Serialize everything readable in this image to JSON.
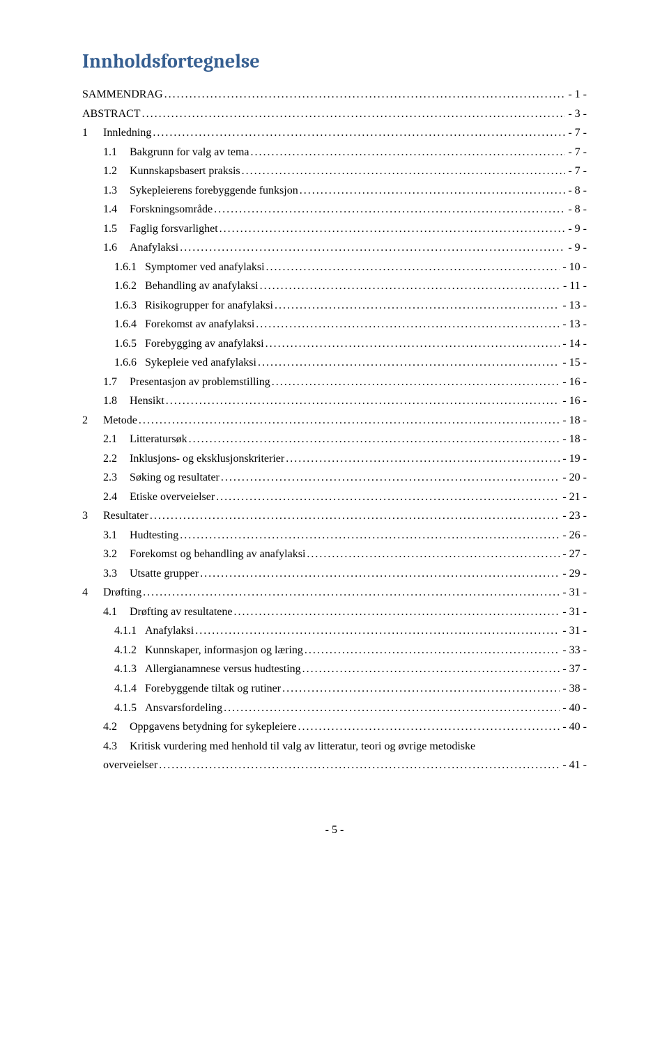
{
  "title": "Innholdsfortegnelse",
  "title_color": "#365f91",
  "background_color": "#ffffff",
  "text_color": "#000000",
  "body_font": "Times New Roman",
  "title_font": "Cambria",
  "title_fontsize_pt": 21,
  "body_fontsize_pt": 12,
  "footer_page": "- 5 -",
  "entries": [
    {
      "indent": 0,
      "num": "",
      "label": "SAMMENDRAG",
      "page": "- 1 -"
    },
    {
      "indent": 0,
      "num": "",
      "label": "ABSTRACT",
      "page": "- 3 -"
    },
    {
      "indent": 0,
      "num": "1",
      "label": "Innledning",
      "page": "- 7 -"
    },
    {
      "indent": 1,
      "num": "1.1",
      "label": "Bakgrunn for valg av tema",
      "page": "- 7 -"
    },
    {
      "indent": 1,
      "num": "1.2",
      "label": "Kunnskapsbasert praksis",
      "page": "- 7 -"
    },
    {
      "indent": 1,
      "num": "1.3",
      "label": "Sykepleierens forebyggende funksjon",
      "page": "- 8 -"
    },
    {
      "indent": 1,
      "num": "1.4",
      "label": "Forskningsområde",
      "page": "- 8 -"
    },
    {
      "indent": 1,
      "num": "1.5",
      "label": "Faglig forsvarlighet",
      "page": "- 9 -"
    },
    {
      "indent": 1,
      "num": "1.6",
      "label": "Anafylaksi",
      "page": "- 9 -"
    },
    {
      "indent": 2,
      "num": "1.6.1",
      "label": "Symptomer ved anafylaksi",
      "page": "- 10 -"
    },
    {
      "indent": 2,
      "num": "1.6.2",
      "label": "Behandling av anafylaksi",
      "page": "- 11 -"
    },
    {
      "indent": 2,
      "num": "1.6.3",
      "label": "Risikogrupper for anafylaksi",
      "page": "- 13 -"
    },
    {
      "indent": 2,
      "num": "1.6.4",
      "label": "Forekomst av anafylaksi",
      "page": "- 13 -"
    },
    {
      "indent": 2,
      "num": "1.6.5",
      "label": "Forebygging av anafylaksi",
      "page": "- 14 -"
    },
    {
      "indent": 2,
      "num": "1.6.6",
      "label": "Sykepleie ved anafylaksi",
      "page": "- 15 -"
    },
    {
      "indent": 1,
      "num": "1.7",
      "label": "Presentasjon av problemstilling",
      "page": "- 16 -"
    },
    {
      "indent": 1,
      "num": "1.8",
      "label": "Hensikt",
      "page": "- 16 -"
    },
    {
      "indent": 0,
      "num": "2",
      "label": "Metode",
      "page": "- 18 -"
    },
    {
      "indent": 1,
      "num": "2.1",
      "label": "Litteratursøk",
      "page": "- 18 -"
    },
    {
      "indent": 1,
      "num": "2.2",
      "label": "Inklusjons- og eksklusjonskriterier",
      "page": "- 19 -"
    },
    {
      "indent": 1,
      "num": "2.3",
      "label": "Søking og resultater",
      "page": "- 20 -"
    },
    {
      "indent": 1,
      "num": "2.4",
      "label": "Etiske overveielser",
      "page": "- 21 -"
    },
    {
      "indent": 0,
      "num": "3",
      "label": "Resultater",
      "page": "- 23 -"
    },
    {
      "indent": 1,
      "num": "3.1",
      "label": "Hudtesting",
      "page": "- 26 -"
    },
    {
      "indent": 1,
      "num": "3.2",
      "label": "Forekomst og behandling av anafylaksi",
      "page": "- 27 -"
    },
    {
      "indent": 1,
      "num": "3.3",
      "label": "Utsatte grupper",
      "page": "- 29 -"
    },
    {
      "indent": 0,
      "num": "4",
      "label": "Drøfting",
      "page": "- 31 -"
    },
    {
      "indent": 1,
      "num": "4.1",
      "label": "Drøfting av resultatene",
      "page": "- 31 -"
    },
    {
      "indent": 2,
      "num": "4.1.1",
      "label": "Anafylaksi",
      "page": "- 31 -"
    },
    {
      "indent": 2,
      "num": "4.1.2",
      "label": "Kunnskaper, informasjon og læring",
      "page": "- 33 -"
    },
    {
      "indent": 2,
      "num": "4.1.3",
      "label": "Allergianamnese versus hudtesting",
      "page": "- 37 -"
    },
    {
      "indent": 2,
      "num": "4.1.4",
      "label": "Forebyggende tiltak og rutiner",
      "page": "- 38 -"
    },
    {
      "indent": 2,
      "num": "4.1.5",
      "label": "Ansvarsfordeling",
      "page": "- 40 -"
    },
    {
      "indent": 1,
      "num": "4.2",
      "label": "Oppgavens betydning for sykepleiere",
      "page": "- 40 -"
    },
    {
      "indent": 1,
      "num": "4.3",
      "label": "Kritisk vurdering med henhold til valg av litteratur, teori og øvrige metodiske",
      "page": "",
      "wrap": true
    },
    {
      "indent": 1,
      "num": "",
      "label": "overveielser",
      "page": "- 41 -",
      "wrapCont": true
    }
  ],
  "num_width_by_indent": {
    "0": "30px",
    "1": "38px",
    "2": "44px"
  }
}
